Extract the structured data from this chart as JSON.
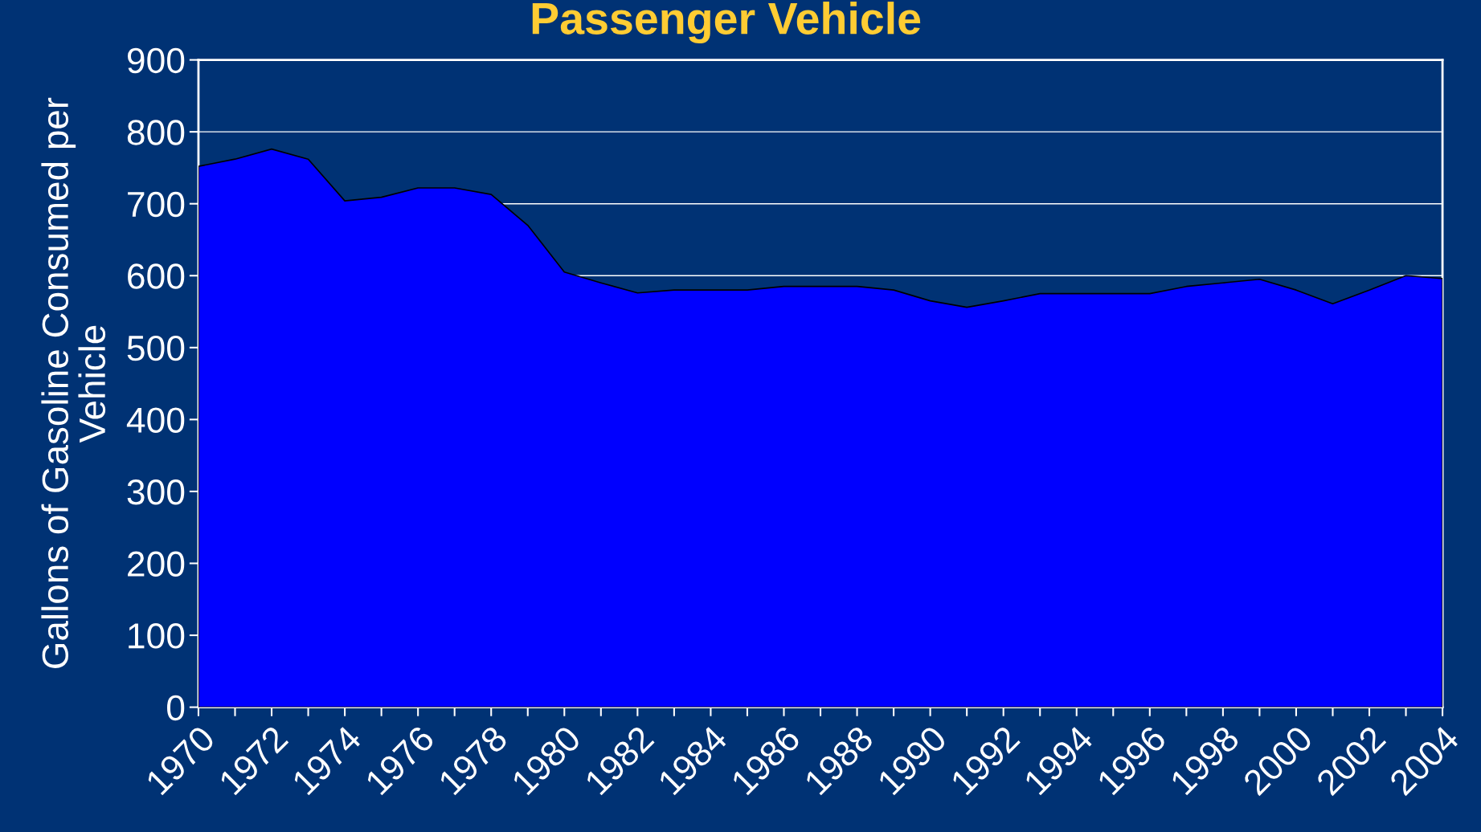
{
  "chart_data": {
    "type": "area",
    "title": "Passenger Vehicle",
    "ylabel": "Gallons of Gasoline Consumed per\nVehicle",
    "categories": [
      "1970",
      null,
      "1972",
      null,
      "1974",
      null,
      "1976",
      null,
      "1978",
      null,
      "1980",
      null,
      "1982",
      null,
      "1984",
      null,
      "1986",
      null,
      "1988",
      null,
      "1990",
      null,
      "1992",
      null,
      "1994",
      null,
      "1996",
      null,
      "1998",
      null,
      "2000",
      null,
      "2002",
      null,
      "2004"
    ],
    "series": [
      {
        "color": "#0000ff",
        "values": [
          752,
          762,
          776,
          762,
          704,
          709,
          722,
          722,
          713,
          670,
          605,
          590,
          576,
          580,
          580,
          580,
          585,
          585,
          585,
          580,
          565,
          556,
          565,
          575,
          575,
          575,
          575,
          585,
          590,
          595,
          580,
          561,
          580,
          600,
          596
        ]
      }
    ],
    "ylim": [
      0,
      900
    ],
    "yticks": [
      0,
      100,
      200,
      300,
      400,
      500,
      600,
      700,
      800,
      900
    ],
    "grid": "y",
    "legend": false
  }
}
